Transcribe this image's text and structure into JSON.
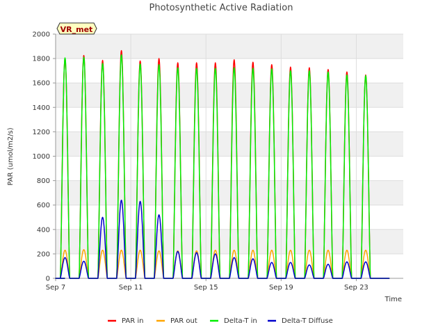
{
  "chart_data": {
    "type": "line",
    "title": "Photosynthetic Active Radiation",
    "xlabel": "Time",
    "ylabel": "PAR (umol/m2/s)",
    "site_label": "VR_met",
    "ylim": [
      0,
      2000
    ],
    "y_ticks": [
      0,
      200,
      400,
      600,
      800,
      1000,
      1200,
      1400,
      1600,
      1800,
      2000
    ],
    "xlim": [
      "2024-09-07",
      "2024-09-25T12:00"
    ],
    "x_ticks": [
      {
        "date": "2024-09-07",
        "label": "Sep 7"
      },
      {
        "date": "2024-09-11",
        "label": "Sep 11"
      },
      {
        "date": "2024-09-15",
        "label": "Sep 15"
      },
      {
        "date": "2024-09-19",
        "label": "Sep 19"
      },
      {
        "date": "2024-09-23",
        "label": "Sep 23"
      }
    ],
    "grid": true,
    "legend_position": "bottom",
    "days": [
      "2024-09-07",
      "2024-09-08",
      "2024-09-09",
      "2024-09-10",
      "2024-09-11",
      "2024-09-12",
      "2024-09-13",
      "2024-09-14",
      "2024-09-15",
      "2024-09-16",
      "2024-09-17",
      "2024-09-18",
      "2024-09-19",
      "2024-09-20",
      "2024-09-21",
      "2024-09-22",
      "2024-09-23",
      "2024-09-24"
    ],
    "day_start_hour": 6,
    "day_end_hour": 18,
    "series": [
      {
        "name": "PAR in",
        "color": "#ff0000",
        "daily_peak": [
          1800,
          1825,
          1785,
          1865,
          1780,
          1800,
          1765,
          1765,
          1765,
          1790,
          1770,
          1750,
          1730,
          1725,
          1710,
          1690,
          1665,
          0
        ]
      },
      {
        "name": "PAR out",
        "color": "#ffa500",
        "daily_peak": [
          230,
          235,
          230,
          230,
          230,
          225,
          225,
          225,
          230,
          230,
          230,
          230,
          230,
          230,
          230,
          230,
          230,
          0
        ]
      },
      {
        "name": "Delta-T in",
        "color": "#00ee00",
        "daily_peak": [
          1805,
          1810,
          1760,
          1830,
          1755,
          1750,
          1725,
          1720,
          1720,
          1725,
          1720,
          1715,
          1700,
          1700,
          1690,
          1665,
          1660,
          0
        ]
      },
      {
        "name": "Delta-T Diffuse",
        "color": "#0000cc",
        "daily_peak": [
          170,
          140,
          500,
          640,
          630,
          520,
          220,
          210,
          200,
          170,
          160,
          130,
          130,
          110,
          115,
          135,
          135,
          0
        ]
      }
    ]
  }
}
